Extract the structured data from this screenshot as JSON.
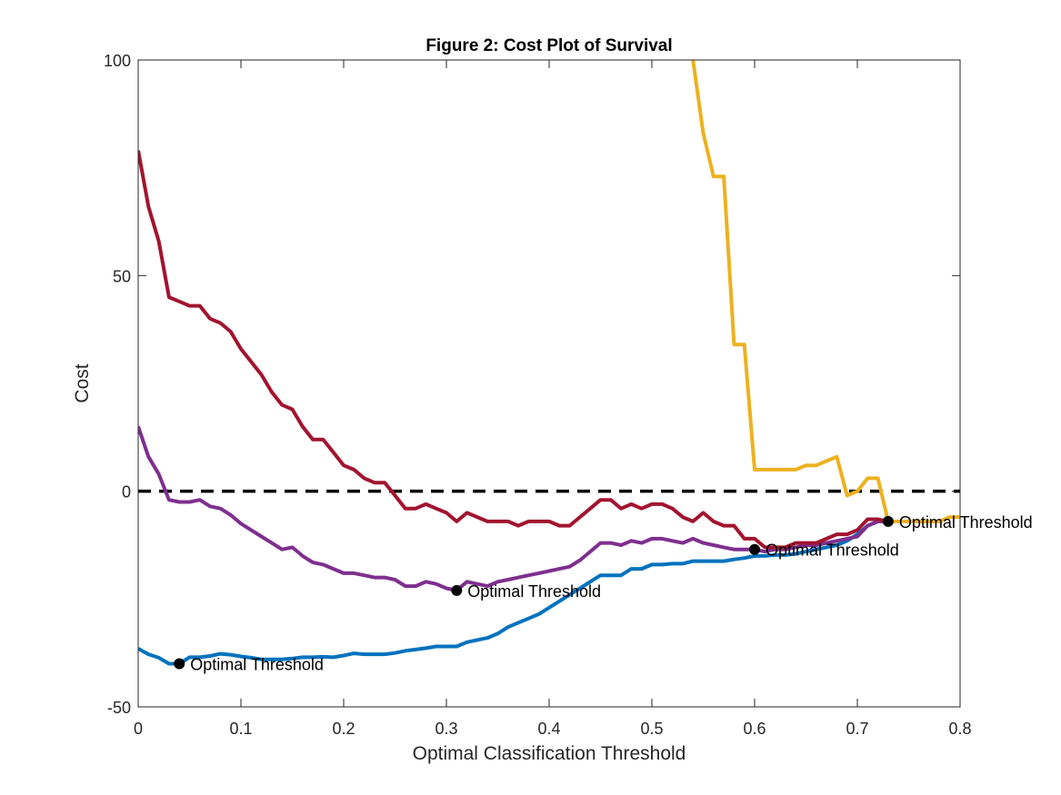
{
  "chart_data": {
    "type": "line",
    "title": "Figure 2: Cost Plot of Survival",
    "xlabel": "Optimal Classification Threshold",
    "ylabel": "Cost",
    "xlim": [
      0,
      0.8
    ],
    "ylim": [
      -50,
      100
    ],
    "xticks": [
      0,
      0.1,
      0.2,
      0.3,
      0.4,
      0.5,
      0.6,
      0.7,
      0.8
    ],
    "xtick_labels": [
      "0",
      "0.1",
      "0.2",
      "0.3",
      "0.4",
      "0.5",
      "0.6",
      "0.7",
      "0.8"
    ],
    "yticks": [
      -50,
      0,
      50,
      100
    ],
    "ytick_labels": [
      "-50",
      "0",
      "50",
      "100"
    ],
    "grid": false,
    "reference_line": {
      "y": 0,
      "style": "dashed",
      "color": "#000000"
    },
    "series": [
      {
        "color": "#0072BD",
        "x": [
          0,
          0.01,
          0.02,
          0.03,
          0.04,
          0.05,
          0.06,
          0.07,
          0.08,
          0.09,
          0.1,
          0.11,
          0.12,
          0.13,
          0.14,
          0.15,
          0.16,
          0.17,
          0.18,
          0.19,
          0.2,
          0.21,
          0.22,
          0.23,
          0.24,
          0.25,
          0.26,
          0.27,
          0.28,
          0.29,
          0.3,
          0.31,
          0.32,
          0.33,
          0.34,
          0.35,
          0.36,
          0.37,
          0.38,
          0.39,
          0.4,
          0.41,
          0.42,
          0.43,
          0.44,
          0.45,
          0.46,
          0.47,
          0.48,
          0.49,
          0.5,
          0.51,
          0.52,
          0.53,
          0.54,
          0.55,
          0.56,
          0.57,
          0.58,
          0.59,
          0.6,
          0.61,
          0.62,
          0.63,
          0.64,
          0.65,
          0.66,
          0.67,
          0.68,
          0.69,
          0.7,
          0.71,
          0.72,
          0.73
        ],
        "y": [
          -36.5,
          -37.8,
          -38.6,
          -40.0,
          -40.0,
          -38.5,
          -38.5,
          -38.2,
          -37.7,
          -37.9,
          -38.3,
          -38.6,
          -39.0,
          -39.0,
          -39.0,
          -38.8,
          -38.5,
          -38.5,
          -38.4,
          -38.5,
          -38.1,
          -37.6,
          -37.8,
          -37.8,
          -37.8,
          -37.5,
          -37.0,
          -36.7,
          -36.4,
          -36.0,
          -36.0,
          -36.0,
          -35.0,
          -34.5,
          -34.0,
          -33.0,
          -31.5,
          -30.5,
          -29.5,
          -28.5,
          -27.0,
          -25.5,
          -24.0,
          -22.5,
          -21.0,
          -19.5,
          -19.5,
          -19.5,
          -18.0,
          -18.0,
          -17.0,
          -17.0,
          -16.8,
          -16.8,
          -16.2,
          -16.2,
          -16.2,
          -16.2,
          -15.8,
          -15.5,
          -15.0,
          -15.0,
          -14.8,
          -14.8,
          -14.5,
          -14.0,
          -13.5,
          -13.0,
          -12.5,
          -11.5,
          -10.0,
          -8.0,
          -7.0,
          -7.0
        ]
      },
      {
        "color": "#7E2F8E",
        "x": [
          0,
          0.01,
          0.02,
          0.03,
          0.04,
          0.05,
          0.06,
          0.07,
          0.08,
          0.09,
          0.1,
          0.11,
          0.12,
          0.13,
          0.14,
          0.15,
          0.16,
          0.17,
          0.18,
          0.19,
          0.2,
          0.21,
          0.22,
          0.23,
          0.24,
          0.25,
          0.26,
          0.27,
          0.28,
          0.29,
          0.3,
          0.31,
          0.32,
          0.33,
          0.34,
          0.35,
          0.36,
          0.37,
          0.38,
          0.39,
          0.4,
          0.41,
          0.42,
          0.43,
          0.44,
          0.45,
          0.46,
          0.47,
          0.48,
          0.49,
          0.5,
          0.51,
          0.52,
          0.53,
          0.54,
          0.55,
          0.56,
          0.57,
          0.58,
          0.59,
          0.6,
          0.61,
          0.62,
          0.63,
          0.64,
          0.65,
          0.66,
          0.67,
          0.68,
          0.69,
          0.7,
          0.71,
          0.72,
          0.73
        ],
        "y": [
          15.0,
          8.0,
          4.0,
          -2.0,
          -2.5,
          -2.5,
          -2.0,
          -3.5,
          -4.0,
          -5.5,
          -7.5,
          -9.0,
          -10.5,
          -12.0,
          -13.5,
          -13.0,
          -15.0,
          -16.5,
          -17.0,
          -18.0,
          -19.0,
          -19.0,
          -19.5,
          -20.0,
          -20.0,
          -20.5,
          -22.0,
          -22.0,
          -21.0,
          -21.5,
          -22.5,
          -23.0,
          -21.0,
          -21.5,
          -22.0,
          -21.0,
          -20.5,
          -20.0,
          -19.5,
          -19.0,
          -18.5,
          -18.0,
          -17.5,
          -16.0,
          -14.0,
          -12.0,
          -12.0,
          -12.5,
          -11.5,
          -12.0,
          -11.0,
          -11.0,
          -11.5,
          -12.0,
          -11.0,
          -12.0,
          -12.5,
          -13.0,
          -13.5,
          -13.5,
          -13.5,
          -14.0,
          -13.5,
          -13.5,
          -13.0,
          -12.5,
          -12.5,
          -12.0,
          -11.5,
          -11.0,
          -10.5,
          -8.0,
          -7.0,
          -7.0
        ]
      },
      {
        "color": "#A2142F",
        "x": [
          0,
          0.01,
          0.02,
          0.03,
          0.04,
          0.05,
          0.06,
          0.07,
          0.08,
          0.09,
          0.1,
          0.11,
          0.12,
          0.13,
          0.14,
          0.15,
          0.16,
          0.17,
          0.18,
          0.19,
          0.2,
          0.21,
          0.22,
          0.23,
          0.24,
          0.25,
          0.26,
          0.27,
          0.28,
          0.29,
          0.3,
          0.31,
          0.32,
          0.33,
          0.34,
          0.35,
          0.36,
          0.37,
          0.38,
          0.39,
          0.4,
          0.41,
          0.42,
          0.43,
          0.44,
          0.45,
          0.46,
          0.47,
          0.48,
          0.49,
          0.5,
          0.51,
          0.52,
          0.53,
          0.54,
          0.55,
          0.56,
          0.57,
          0.58,
          0.59,
          0.6,
          0.61,
          0.62,
          0.63,
          0.64,
          0.65,
          0.66,
          0.67,
          0.68,
          0.69,
          0.7,
          0.71,
          0.72,
          0.73
        ],
        "y": [
          79.0,
          66.0,
          58.0,
          45.0,
          44.0,
          43.0,
          43.0,
          40.0,
          39.0,
          37.0,
          33.0,
          30.0,
          27.0,
          23.0,
          20.0,
          19.0,
          15.0,
          12.0,
          12.0,
          9.0,
          6.0,
          5.0,
          3.0,
          2.0,
          2.0,
          -1.0,
          -4.0,
          -4.0,
          -3.0,
          -4.0,
          -5.0,
          -7.0,
          -5.0,
          -6.0,
          -7.0,
          -7.0,
          -7.0,
          -8.0,
          -7.0,
          -7.0,
          -7.0,
          -8.0,
          -8.0,
          -6.0,
          -4.0,
          -2.0,
          -2.0,
          -4.0,
          -3.0,
          -4.0,
          -3.0,
          -3.0,
          -4.0,
          -6.0,
          -7.0,
          -5.0,
          -7.0,
          -8.0,
          -8.0,
          -11.0,
          -11.0,
          -13.0,
          -13.0,
          -13.0,
          -12.0,
          -12.0,
          -12.0,
          -11.0,
          -10.0,
          -10.0,
          -9.0,
          -6.5,
          -6.5,
          -7.0
        ]
      },
      {
        "color": "#EDB120",
        "x": [
          0.54,
          0.55,
          0.56,
          0.57,
          0.58,
          0.59,
          0.6,
          0.61,
          0.62,
          0.63,
          0.64,
          0.65,
          0.66,
          0.67,
          0.68,
          0.69,
          0.7,
          0.71,
          0.72,
          0.73,
          0.74,
          0.75,
          0.76,
          0.77,
          0.78,
          0.79,
          0.8
        ],
        "y": [
          100,
          83,
          73,
          73,
          34,
          34,
          5,
          5,
          5,
          5,
          5,
          6,
          6,
          7,
          8,
          -1,
          0,
          3,
          3,
          -7,
          -7,
          -7,
          -7,
          -7,
          -7,
          -6,
          -6
        ]
      }
    ],
    "annotations": [
      {
        "x": 0.04,
        "y": -40.0,
        "label": "Optimal Threshold"
      },
      {
        "x": 0.31,
        "y": -23.0,
        "label": "Optimal Threshold"
      },
      {
        "x": 0.6,
        "y": -13.5,
        "label": "Optimal Threshold"
      },
      {
        "x": 0.73,
        "y": -7.0,
        "label": "Optimal Threshold"
      }
    ]
  }
}
